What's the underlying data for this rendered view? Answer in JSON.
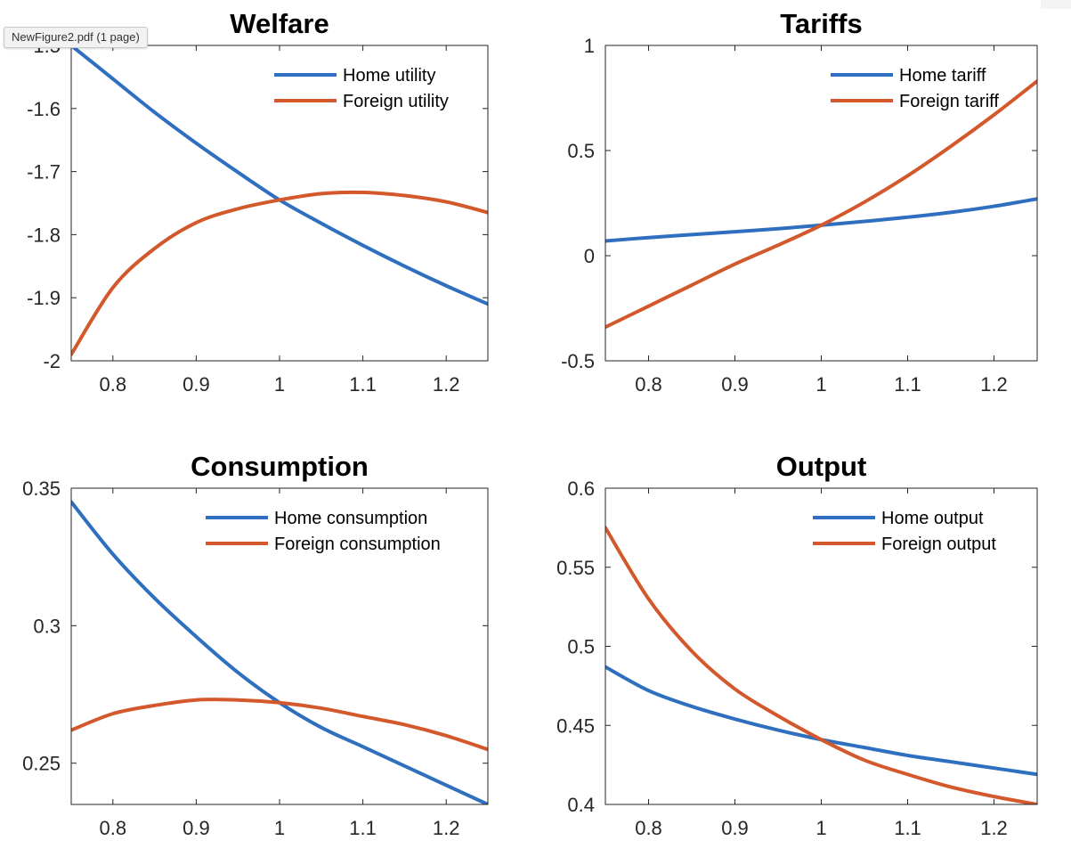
{
  "window": {
    "tooltip": "NewFigure2.pdf (1 page)"
  },
  "colors": {
    "home": "#2f6fbf",
    "foreign": "#d3582b",
    "axis": "#262626",
    "background": "#ffffff"
  },
  "chart_data": [
    {
      "type": "line",
      "title": "Welfare",
      "xlabel": "",
      "ylabel": "",
      "xlim": [
        0.75,
        1.25
      ],
      "ylim": [
        -2.0,
        -1.5
      ],
      "x_ticks": [
        0.8,
        0.9,
        1.0,
        1.1,
        1.2
      ],
      "x_tick_labels": [
        "0.8",
        "0.9",
        "1",
        "1.1",
        "1.2"
      ],
      "y_ticks": [
        -2.0,
        -1.9,
        -1.8,
        -1.7,
        -1.6,
        -1.5
      ],
      "y_tick_labels": [
        "-2",
        "-1.9",
        "-1.8",
        "-1.7",
        "-1.6",
        "-1.5"
      ],
      "legend_position": "top-right",
      "grid": false,
      "x": [
        0.75,
        0.8,
        0.85,
        0.9,
        0.95,
        1.0,
        1.05,
        1.1,
        1.15,
        1.2,
        1.25
      ],
      "series": [
        {
          "name": "Home utility",
          "color": "#2f6fbf",
          "values": [
            -1.5,
            -1.553,
            -1.606,
            -1.655,
            -1.701,
            -1.745,
            -1.782,
            -1.817,
            -1.85,
            -1.881,
            -1.91
          ]
        },
        {
          "name": "Foreign utility",
          "color": "#d3582b",
          "values": [
            -1.99,
            -1.884,
            -1.822,
            -1.781,
            -1.759,
            -1.745,
            -1.735,
            -1.733,
            -1.738,
            -1.748,
            -1.765
          ]
        }
      ]
    },
    {
      "type": "line",
      "title": "Tariffs",
      "xlabel": "",
      "ylabel": "",
      "xlim": [
        0.75,
        1.25
      ],
      "ylim": [
        -0.5,
        1.0
      ],
      "x_ticks": [
        0.8,
        0.9,
        1.0,
        1.1,
        1.2
      ],
      "x_tick_labels": [
        "0.8",
        "0.9",
        "1",
        "1.1",
        "1.2"
      ],
      "y_ticks": [
        -0.5,
        0.0,
        0.5,
        1.0
      ],
      "y_tick_labels": [
        "-0.5",
        "0",
        "0.5",
        "1"
      ],
      "legend_position": "top-right",
      "grid": false,
      "x": [
        0.75,
        0.8,
        0.85,
        0.9,
        0.95,
        1.0,
        1.05,
        1.1,
        1.15,
        1.2,
        1.25
      ],
      "series": [
        {
          "name": "Home tariff",
          "color": "#2f6fbf",
          "values": [
            0.07,
            0.086,
            0.1,
            0.114,
            0.128,
            0.145,
            0.163,
            0.183,
            0.206,
            0.235,
            0.27
          ]
        },
        {
          "name": "Foreign tariff",
          "color": "#d3582b",
          "values": [
            -0.34,
            -0.24,
            -0.14,
            -0.04,
            0.05,
            0.145,
            0.255,
            0.38,
            0.52,
            0.67,
            0.83
          ]
        }
      ]
    },
    {
      "type": "line",
      "title": "Consumption",
      "xlabel": "",
      "ylabel": "",
      "xlim": [
        0.75,
        1.25
      ],
      "ylim": [
        0.235,
        0.35
      ],
      "x_ticks": [
        0.8,
        0.9,
        1.0,
        1.1,
        1.2
      ],
      "x_tick_labels": [
        "0.8",
        "0.9",
        "1",
        "1.1",
        "1.2"
      ],
      "y_ticks": [
        0.25,
        0.3,
        0.35
      ],
      "y_tick_labels": [
        "0.25",
        "0.3",
        "0.35"
      ],
      "legend_position": "top-right",
      "grid": false,
      "x": [
        0.75,
        0.8,
        0.85,
        0.9,
        0.95,
        1.0,
        1.05,
        1.1,
        1.15,
        1.2,
        1.25
      ],
      "series": [
        {
          "name": "Home consumption",
          "color": "#2f6fbf",
          "values": [
            0.345,
            0.326,
            0.31,
            0.296,
            0.283,
            0.272,
            0.263,
            0.256,
            0.249,
            0.242,
            0.235
          ]
        },
        {
          "name": "Foreign consumption",
          "color": "#d3582b",
          "values": [
            0.262,
            0.268,
            0.271,
            0.273,
            0.273,
            0.272,
            0.27,
            0.267,
            0.264,
            0.26,
            0.255
          ]
        }
      ]
    },
    {
      "type": "line",
      "title": "Output",
      "xlabel": "",
      "ylabel": "",
      "xlim": [
        0.75,
        1.25
      ],
      "ylim": [
        0.4,
        0.6
      ],
      "x_ticks": [
        0.8,
        0.9,
        1.0,
        1.1,
        1.2
      ],
      "x_tick_labels": [
        "0.8",
        "0.9",
        "1",
        "1.1",
        "1.2"
      ],
      "y_ticks": [
        0.4,
        0.45,
        0.5,
        0.55,
        0.6
      ],
      "y_tick_labels": [
        "0.4",
        "0.45",
        "0.5",
        "0.55",
        "0.6"
      ],
      "legend_position": "top-right",
      "grid": false,
      "x": [
        0.75,
        0.8,
        0.85,
        0.9,
        0.95,
        1.0,
        1.05,
        1.1,
        1.15,
        1.2,
        1.25
      ],
      "series": [
        {
          "name": "Home output",
          "color": "#2f6fbf",
          "values": [
            0.487,
            0.472,
            0.462,
            0.454,
            0.447,
            0.441,
            0.436,
            0.431,
            0.427,
            0.423,
            0.419
          ]
        },
        {
          "name": "Foreign output",
          "color": "#d3582b",
          "values": [
            0.575,
            0.53,
            0.497,
            0.473,
            0.456,
            0.441,
            0.428,
            0.419,
            0.411,
            0.405,
            0.4
          ]
        }
      ]
    }
  ]
}
